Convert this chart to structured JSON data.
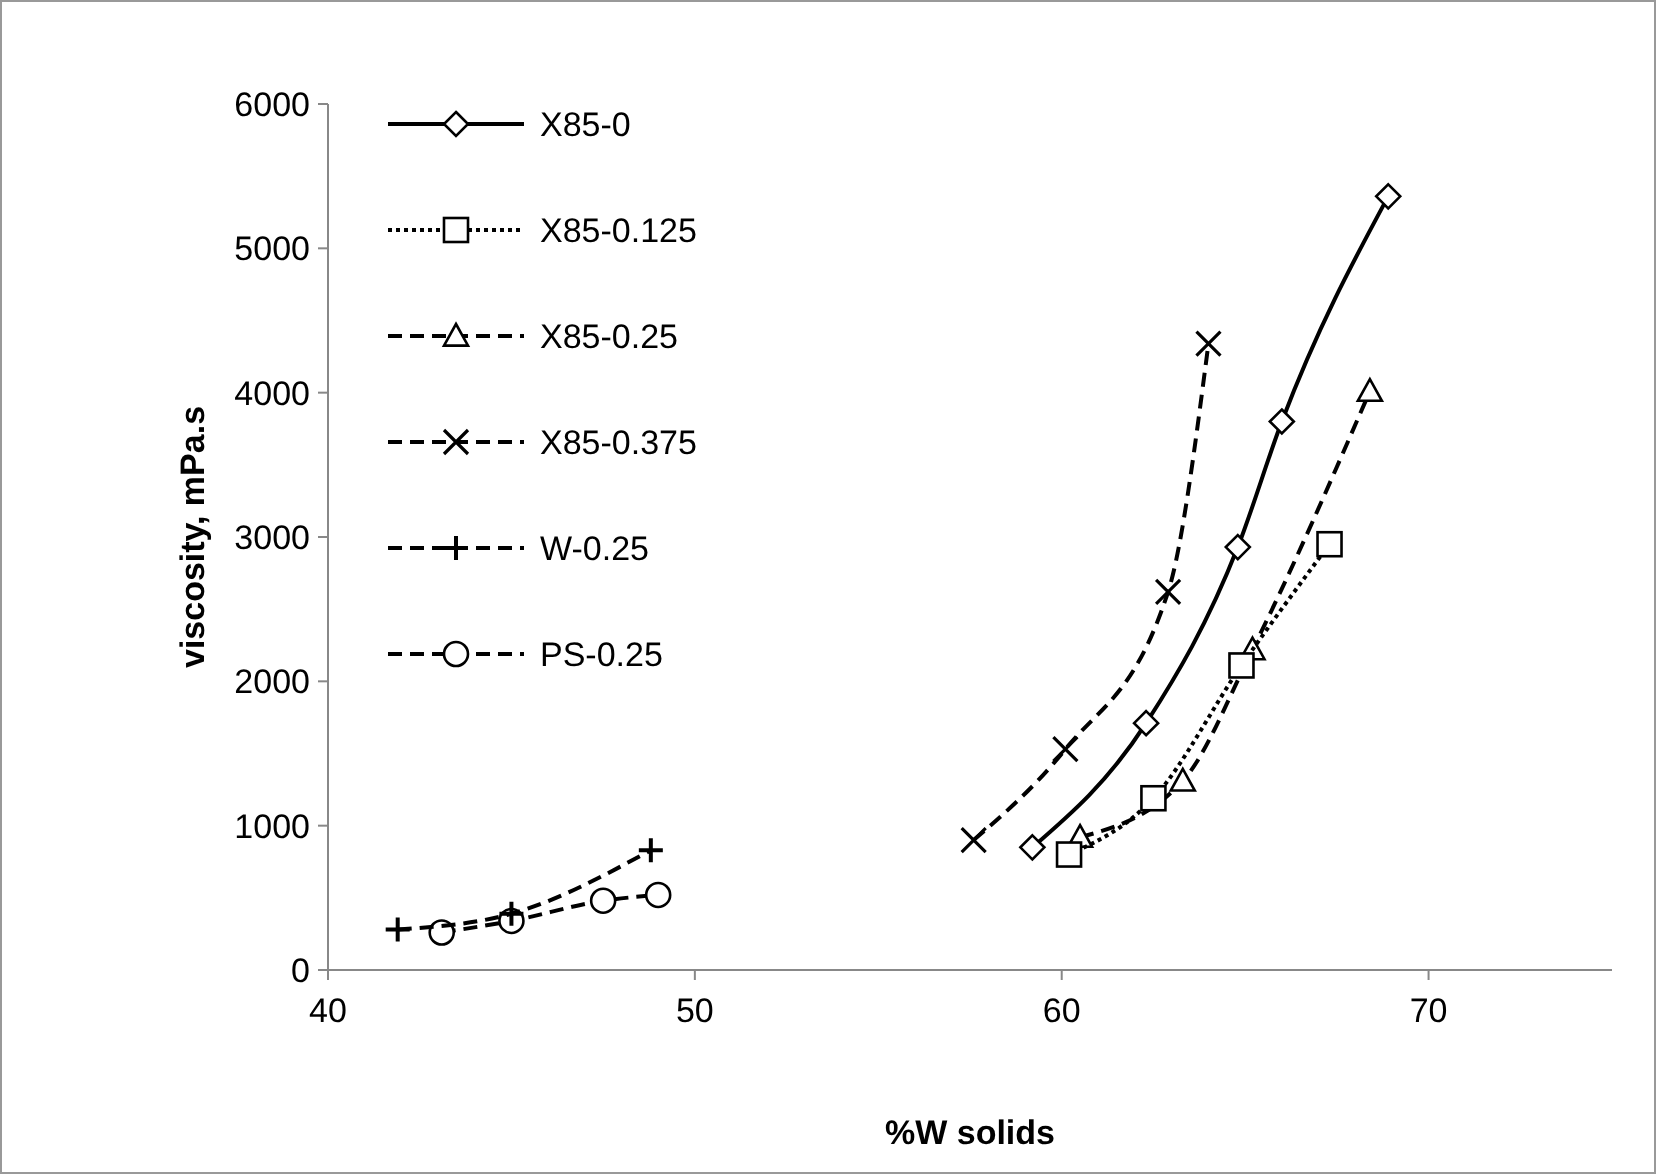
{
  "chart_data": {
    "type": "line",
    "xlabel": "%W solids",
    "ylabel": "viscosity, mPa.s",
    "xlim": [
      40,
      75
    ],
    "xticks": [
      40,
      50,
      60,
      70
    ],
    "ylim": [
      0,
      6000
    ],
    "yticks": [
      0,
      1000,
      2000,
      3000,
      4000,
      5000,
      6000
    ],
    "grid": false,
    "legend": "top left",
    "series": [
      {
        "name": "X85-0",
        "color": "#000000",
        "marker": "diamond",
        "line_style": "solid",
        "x": [
          59.2,
          62.3,
          64.8,
          66,
          68.9
        ],
        "values": [
          850,
          1710,
          2930,
          3800,
          5360
        ]
      },
      {
        "name": "X85-0.125",
        "color": "#000000",
        "marker": "square",
        "line_style": "dotted",
        "x": [
          60.2,
          62.5,
          64.9,
          67.3
        ],
        "values": [
          800,
          1190,
          2110,
          2950
        ]
      },
      {
        "name": "X85-0.25",
        "color": "#000000",
        "marker": "triangle",
        "line_style": "dashed",
        "x": [
          60.5,
          63.3,
          65.2,
          68.4
        ],
        "values": [
          920,
          1310,
          2220,
          4010
        ]
      },
      {
        "name": "X85-0.375",
        "color": "#000000",
        "marker": "cross",
        "line_style": "dashed",
        "x": [
          57.6,
          60.1,
          62.9,
          64
        ],
        "values": [
          900,
          1530,
          2620,
          4340
        ]
      },
      {
        "name": "W-0.25",
        "color": "#000000",
        "marker": "plus",
        "line_style": "dashed",
        "x": [
          41.9,
          45,
          48.8
        ],
        "values": [
          280,
          390,
          830
        ]
      },
      {
        "name": "PS-0.25",
        "color": "#000000",
        "marker": "circle",
        "line_style": "dashed",
        "x": [
          43.1,
          45,
          47.5,
          49
        ],
        "values": [
          260,
          340,
          480,
          520
        ]
      }
    ]
  }
}
